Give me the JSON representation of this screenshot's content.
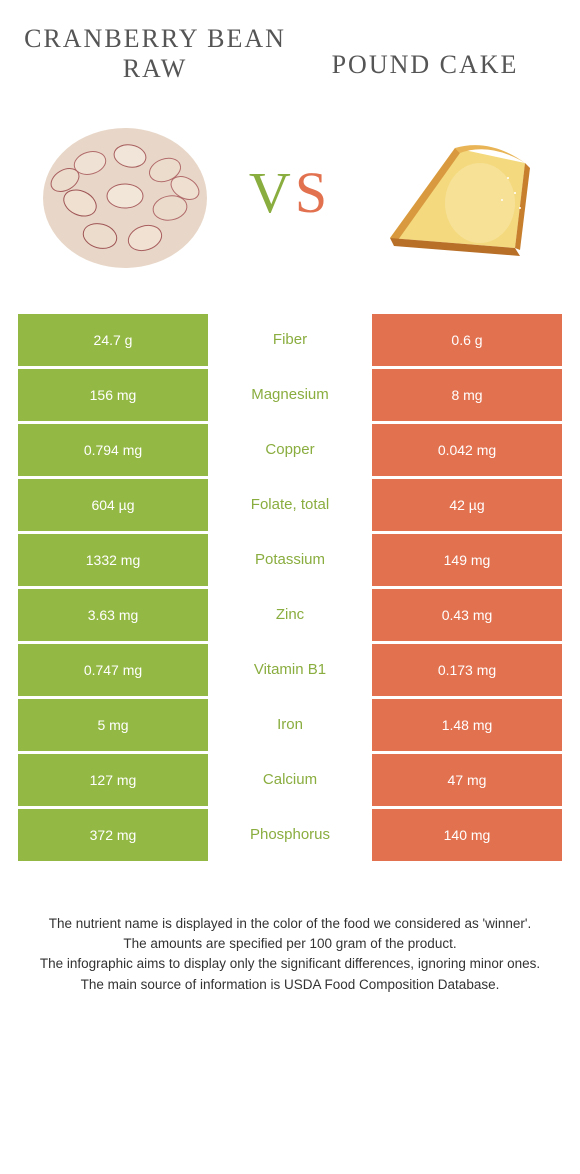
{
  "colors": {
    "left_bg": "#93b843",
    "right_bg": "#e2714f",
    "left_text": "#8aad3f",
    "right_text": "#e2714f",
    "title_color": "#555555",
    "footer_color": "#333333"
  },
  "left_title": "Cranberry bean raw",
  "right_title": "Pound cake",
  "vs_v": "V",
  "vs_s": "S",
  "rows": [
    {
      "left": "24.7 g",
      "label": "Fiber",
      "right": "0.6 g",
      "winner": "left"
    },
    {
      "left": "156 mg",
      "label": "Magnesium",
      "right": "8 mg",
      "winner": "left"
    },
    {
      "left": "0.794 mg",
      "label": "Copper",
      "right": "0.042 mg",
      "winner": "left"
    },
    {
      "left": "604 µg",
      "label": "Folate, total",
      "right": "42 µg",
      "winner": "left"
    },
    {
      "left": "1332 mg",
      "label": "Potassium",
      "right": "149 mg",
      "winner": "left"
    },
    {
      "left": "3.63 mg",
      "label": "Zinc",
      "right": "0.43 mg",
      "winner": "left"
    },
    {
      "left": "0.747 mg",
      "label": "Vitamin B1",
      "right": "0.173 mg",
      "winner": "left"
    },
    {
      "left": "5 mg",
      "label": "Iron",
      "right": "1.48 mg",
      "winner": "left"
    },
    {
      "left": "127 mg",
      "label": "Calcium",
      "right": "47 mg",
      "winner": "left"
    },
    {
      "left": "372 mg",
      "label": "Phosphorus",
      "right": "140 mg",
      "winner": "left"
    }
  ],
  "footer_lines": [
    "The nutrient name is displayed in the color of the food we considered as 'winner'.",
    "The amounts are specified per 100 gram of the product.",
    "The infographic aims to display only the significant differences, ignoring minor ones.",
    "The main source of information is USDA Food Composition Database."
  ]
}
